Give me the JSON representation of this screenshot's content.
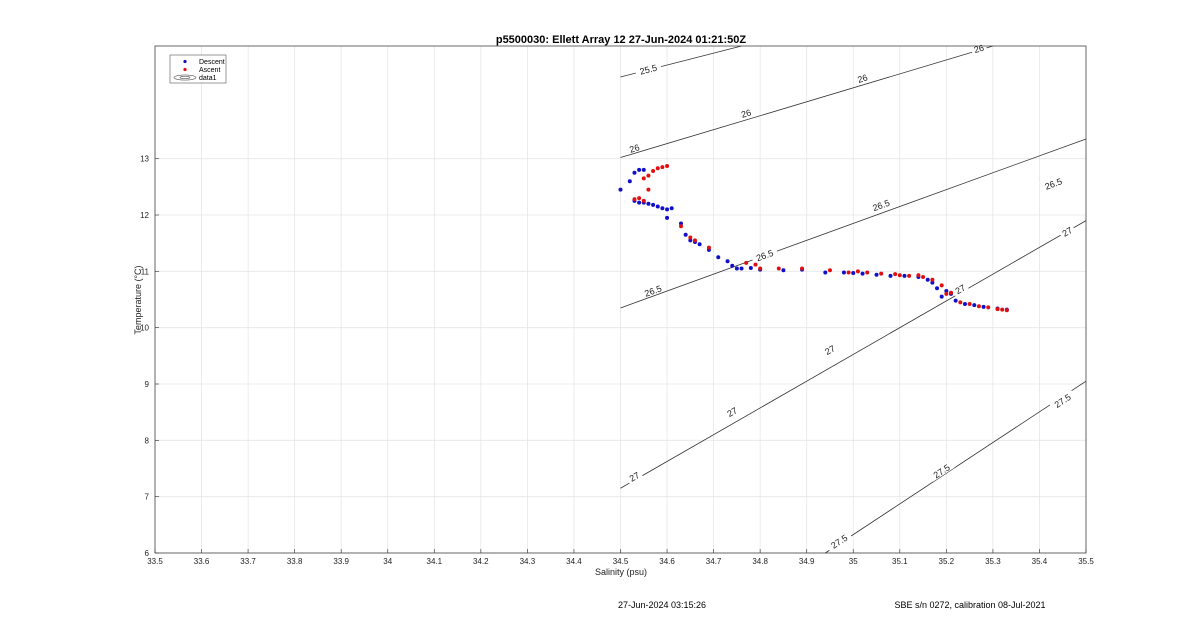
{
  "chart_data": {
    "type": "scatter",
    "title": "p5500030: Ellett Array 12 27-Jun-2024 01:21:50Z",
    "xlabel": "Salinity (psu)",
    "ylabel": "Temperature (°C)",
    "xlim": [
      33.5,
      35.5
    ],
    "ylim": [
      6,
      15
    ],
    "xticks": [
      "33.5",
      "33.6",
      "33.7",
      "33.8",
      "33.9",
      "34",
      "34.1",
      "34.2",
      "34.3",
      "34.4",
      "34.5",
      "34.6",
      "34.7",
      "34.8",
      "34.9",
      "35",
      "35.1",
      "35.2",
      "35.3",
      "35.4",
      "35.5"
    ],
    "yticks": [
      "6",
      "7",
      "8",
      "9",
      "10",
      "11",
      "12",
      "13"
    ],
    "grid": true,
    "legend_position": "top-left",
    "legend": [
      "Descent",
      "Ascent",
      "data1"
    ],
    "colors": {
      "descent": "#1010c8",
      "ascent": "#e01010",
      "contour": "#333333",
      "grid": "#e6e6e6"
    },
    "series": [
      {
        "name": "Descent",
        "x": [
          34.5,
          34.52,
          34.53,
          34.54,
          34.55,
          34.53,
          34.54,
          34.55,
          34.56,
          34.57,
          34.58,
          34.59,
          34.6,
          34.6,
          34.61,
          34.63,
          34.64,
          34.65,
          34.66,
          34.67,
          34.69,
          34.71,
          34.73,
          34.74,
          34.75,
          34.76,
          34.78,
          34.8,
          34.85,
          34.89,
          34.94,
          34.98,
          35.0,
          35.02,
          35.05,
          35.08,
          35.11,
          35.14,
          35.16,
          35.17,
          35.18,
          35.19,
          35.2,
          35.21,
          35.22,
          35.24,
          35.26,
          35.28,
          35.31,
          35.33
        ],
        "y": [
          12.45,
          12.6,
          12.75,
          12.8,
          12.8,
          12.25,
          12.22,
          12.22,
          12.2,
          12.18,
          12.15,
          12.12,
          12.1,
          11.95,
          12.12,
          11.85,
          11.65,
          11.55,
          11.52,
          11.48,
          11.38,
          11.25,
          11.18,
          11.1,
          11.05,
          11.05,
          11.06,
          11.03,
          11.02,
          11.03,
          10.98,
          10.98,
          10.97,
          10.96,
          10.94,
          10.92,
          10.92,
          10.9,
          10.85,
          10.8,
          10.7,
          10.55,
          10.65,
          10.6,
          10.48,
          10.42,
          10.4,
          10.37,
          10.34,
          10.32
        ]
      },
      {
        "name": "Ascent",
        "x": [
          34.55,
          34.56,
          34.57,
          34.58,
          34.59,
          34.6,
          34.54,
          34.55,
          34.53,
          34.56,
          34.63,
          34.65,
          34.66,
          34.69,
          34.77,
          34.79,
          34.8,
          34.84,
          34.89,
          34.95,
          34.99,
          35.01,
          35.03,
          35.06,
          35.09,
          35.1,
          35.12,
          35.14,
          35.15,
          35.17,
          35.19,
          35.2,
          35.21,
          35.23,
          35.25,
          35.27,
          35.29,
          35.31,
          35.32,
          35.33
        ],
        "y": [
          12.65,
          12.7,
          12.78,
          12.83,
          12.85,
          12.87,
          12.3,
          12.25,
          12.28,
          12.45,
          11.8,
          11.6,
          11.55,
          11.42,
          11.15,
          11.12,
          11.05,
          11.05,
          11.05,
          11.02,
          10.98,
          11.0,
          10.98,
          10.96,
          10.95,
          10.93,
          10.92,
          10.93,
          10.9,
          10.85,
          10.75,
          10.6,
          10.62,
          10.45,
          10.42,
          10.38,
          10.36,
          10.33,
          10.32,
          10.31
        ]
      }
    ],
    "contours": [
      {
        "label": "25.5",
        "x": [
          34.5,
          34.76
        ],
        "y": [
          14.45,
          15.0
        ],
        "label_positions": [
          [
            34.56,
            14.58
          ]
        ]
      },
      {
        "label": "26",
        "x": [
          34.5,
          35.3
        ],
        "y": [
          13.02,
          15.0
        ],
        "label_positions": [
          [
            34.53,
            13.18
          ],
          [
            34.77,
            13.8
          ],
          [
            35.02,
            14.42
          ],
          [
            35.27,
            14.95
          ]
        ]
      },
      {
        "label": "26.5",
        "x": [
          34.5,
          35.5
        ],
        "y": [
          10.35,
          13.35
        ],
        "label_positions": [
          [
            34.57,
            10.65
          ],
          [
            34.81,
            11.28
          ],
          [
            35.06,
            12.17
          ],
          [
            35.43,
            12.55
          ]
        ]
      },
      {
        "label": "27",
        "x": [
          34.5,
          35.5
        ],
        "y": [
          7.15,
          11.9
        ],
        "label_positions": [
          [
            34.53,
            7.35
          ],
          [
            34.74,
            8.5
          ],
          [
            34.95,
            9.6
          ],
          [
            35.23,
            10.68
          ],
          [
            35.46,
            11.7
          ]
        ]
      },
      {
        "label": "27.5",
        "x": [
          34.94,
          35.5
        ],
        "y": [
          6.0,
          9.05
        ],
        "label_positions": [
          [
            34.97,
            6.2
          ],
          [
            35.19,
            7.45
          ],
          [
            35.45,
            8.7
          ]
        ]
      }
    ],
    "footer_left": "27-Jun-2024 03:15:26",
    "footer_right": "SBE s/n 0272, calibration 08-Jul-2021"
  }
}
